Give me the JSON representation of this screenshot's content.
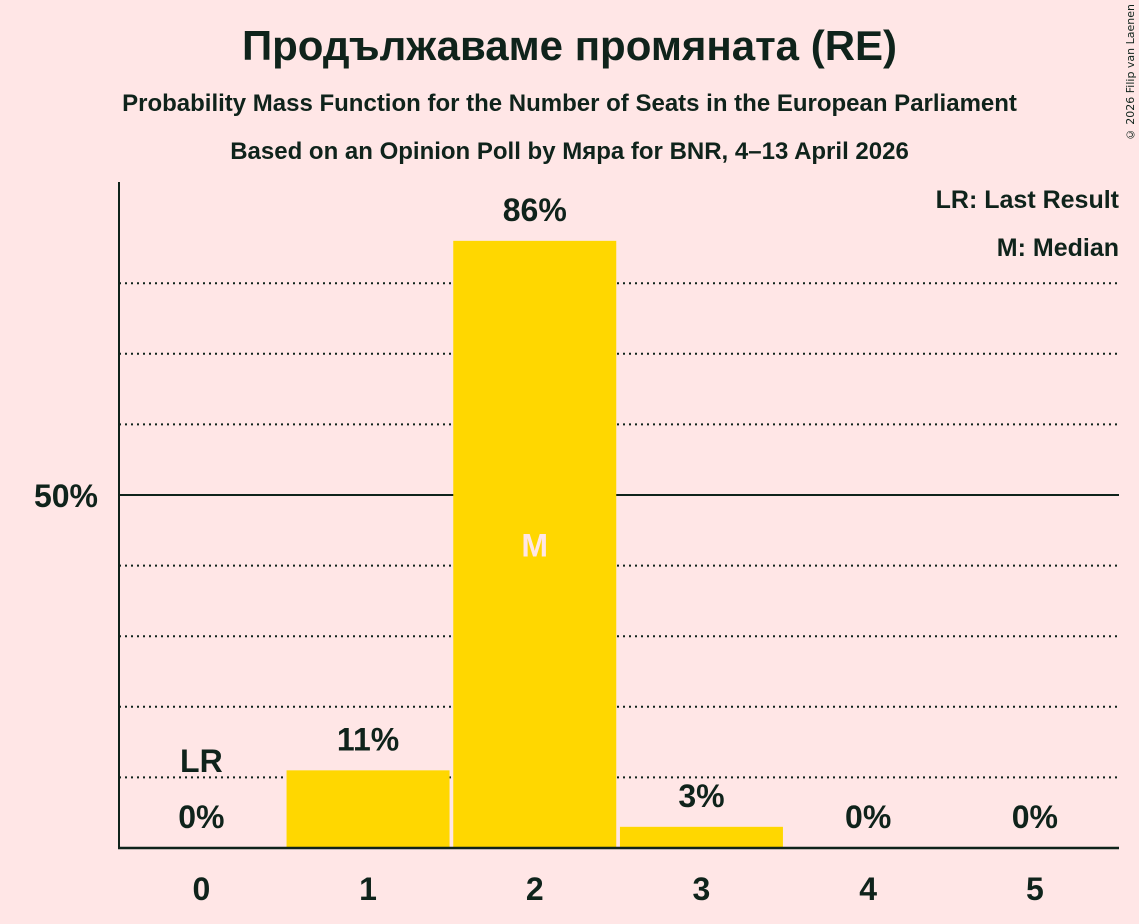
{
  "header": {
    "title": "Продължаваме промяната (RE)",
    "subtitle": "Probability Mass Function for the Number of Seats in the European Parliament",
    "poll_line": "Based on an Opinion Poll by Мяра for BNR, 4–13 April 2026",
    "copyright": "© 2026 Filip van Laenen"
  },
  "legend": {
    "last_result": "LR: Last Result",
    "median": "M: Median"
  },
  "colors": {
    "background": "#FFE6E6",
    "bar": "#FFD700",
    "text": "#0F231B",
    "median_marker": "#FFE6E6"
  },
  "chart_data": {
    "type": "bar",
    "title": "Продължаваме промяната (RE)",
    "subtitle": "Probability Mass Function for the Number of Seats in the European Parliament",
    "xlabel": "",
    "ylabel": "",
    "categories": [
      "0",
      "1",
      "2",
      "3",
      "4",
      "5"
    ],
    "values": [
      0,
      11,
      86,
      3,
      0,
      0
    ],
    "value_labels": [
      "0%",
      "11%",
      "86%",
      "3%",
      "0%",
      "0%"
    ],
    "ylim": [
      0,
      94
    ],
    "y_ticks": [
      {
        "value": 50,
        "label": "50%"
      }
    ],
    "gridlines_dotted_every": 10,
    "annotations": [
      {
        "category": "0",
        "text": "LR",
        "meaning": "Last Result"
      },
      {
        "category": "2",
        "text": "M",
        "meaning": "Median"
      }
    ],
    "legend": [
      "LR: Last Result",
      "M: Median"
    ]
  }
}
